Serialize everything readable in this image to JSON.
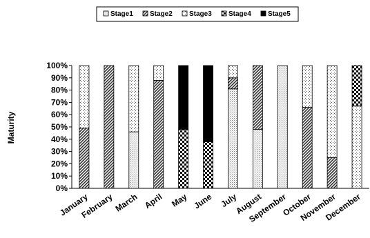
{
  "chart_data": {
    "type": "bar",
    "stacked": true,
    "percent_stacked": true,
    "ylabel": "Maturity",
    "xlabel": "",
    "ylim": [
      0,
      100
    ],
    "yticks": [
      "0%",
      "10%",
      "20%",
      "30%",
      "40%",
      "50%",
      "60%",
      "70%",
      "80%",
      "90%",
      "100%"
    ],
    "legend_position": "top",
    "grid": false,
    "categories": [
      "January",
      "February",
      "March",
      "April",
      "May",
      "June",
      "July",
      "August",
      "September",
      "October",
      "November",
      "December"
    ],
    "series": [
      {
        "name": "Stage1",
        "pattern": "light-dots",
        "values": [
          0,
          0,
          46,
          0,
          0,
          0,
          81,
          48,
          100,
          0,
          0,
          0
        ]
      },
      {
        "name": "Stage2",
        "pattern": "dense-diagonal",
        "values": [
          49,
          100,
          0,
          88,
          0,
          0,
          9,
          52,
          0,
          66,
          25,
          0
        ]
      },
      {
        "name": "Stage3",
        "pattern": "sparse-dots",
        "values": [
          51,
          0,
          54,
          12,
          0,
          0,
          10,
          0,
          0,
          34,
          75,
          67
        ]
      },
      {
        "name": "Stage4",
        "pattern": "checker",
        "values": [
          0,
          0,
          0,
          0,
          48,
          38,
          0,
          0,
          0,
          0,
          0,
          33
        ]
      },
      {
        "name": "Stage5",
        "pattern": "black",
        "values": [
          0,
          0,
          0,
          0,
          52,
          62,
          0,
          0,
          0,
          0,
          0,
          0
        ]
      }
    ]
  }
}
